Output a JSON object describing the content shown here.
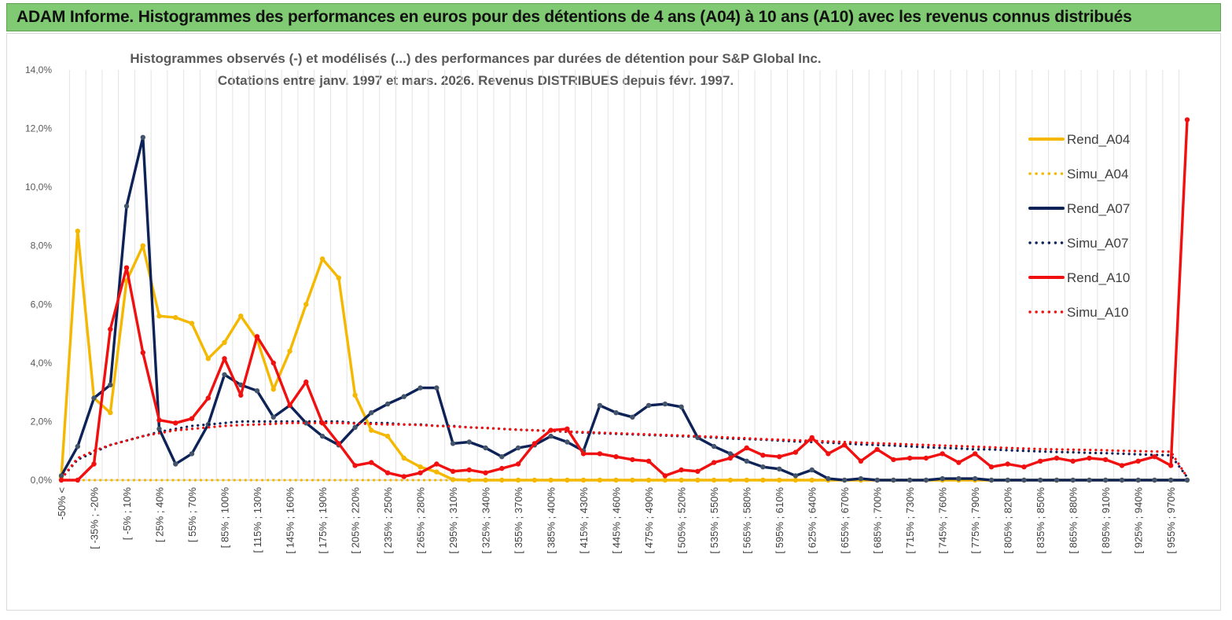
{
  "banner": {
    "title": "ADAM Informe. Histogrammes des performances en euros pour des détentions de 4 ans (A04) à 10 ans (A10) avec les revenus connus distribués"
  },
  "chart_data": {
    "type": "line",
    "title": "Histogrammes observés (-) et modélisés (...) des performances par durées de détention pour S&P Global Inc.",
    "subtitle": "Cotations entre janv. 1997 et mars. 2026. Revenus DISTRIBUES depuis févr. 1997.",
    "xlabel": "",
    "ylabel": "",
    "ylim": [
      0,
      14
    ],
    "y_ticks": [
      "0,0%",
      "2,0%",
      "4,0%",
      "6,0%",
      "8,0%",
      "10,0%",
      "12,0%",
      "14,0%"
    ],
    "grid": "vertical",
    "legend_position": "right",
    "x_labels": [
      "-50% <",
      "[ -35% ; -20%",
      "[ -5% ; 10%",
      "[ 25% ; 40%",
      "[ 55% ; 70%",
      "[ 85% ; 100%",
      "[ 115% ; 130%",
      "[ 145% ; 160%",
      "[ 175% ; 190%",
      "[ 205% ; 220%",
      "[ 235% ; 250%",
      "[ 265% ; 280%",
      "[ 295% ; 310%",
      "[ 325% ; 340%",
      "[ 355% ; 370%",
      "[ 385% ; 400%",
      "[ 415% ; 430%",
      "[ 445% ; 460%",
      "[ 475% ; 490%",
      "[ 505% ; 520%",
      "[ 535% ; 550%",
      "[ 565% ; 580%",
      "[ 595% ; 610%",
      "[ 625% ; 640%",
      "[ 655% ; 670%",
      "[ 685% ; 700%",
      "[ 715% ; 730%",
      "[ 745% ; 760%",
      "[ 775% ; 790%",
      "[ 805% ; 820%",
      "[ 835% ; 850%",
      "[ 865% ; 880%",
      "[ 895% ; 910%",
      "[ 925% ; 940%",
      "[ 955% ; 970%"
    ],
    "series": [
      {
        "name": "Rend_A04",
        "color": "#f5b800",
        "style": "solid",
        "markers": true,
        "values": [
          0.1,
          8.5,
          2.8,
          2.3,
          6.8,
          8.0,
          5.6,
          5.55,
          5.35,
          4.15,
          4.7,
          5.6,
          4.8,
          3.1,
          4.4,
          6.0,
          7.55,
          6.9,
          2.9,
          1.7,
          1.5,
          0.75,
          0.45,
          0.28,
          0.02,
          0.0,
          0.0,
          0.0,
          0.0,
          0.0,
          0.0,
          0.0,
          0.0,
          0.0,
          0.0,
          0.0,
          0.0,
          0.0,
          0.0,
          0.0,
          0.0,
          0.0,
          0.0,
          0.0,
          0.0,
          0.0,
          0.0,
          0.0,
          0.0,
          0.0,
          0.0,
          0.0,
          0.0,
          0.0,
          0.0,
          0.0,
          0.0,
          0.0,
          0.0,
          0.0,
          0.0,
          0.0,
          0.0,
          0.0,
          0.0,
          0.0,
          0.0,
          0.0,
          0.0,
          0.0
        ]
      },
      {
        "name": "Simu_A04",
        "color": "#f5b800",
        "style": "dotted",
        "markers": false,
        "values": [
          0.0,
          0.0,
          0.0,
          0.0,
          0.0,
          0.0,
          0.0,
          0.0,
          0.0,
          0.0,
          0.0,
          0.0,
          0.0,
          0.0,
          0.0,
          0.0,
          0.0,
          0.0,
          0.0,
          0.0,
          0.0,
          0.0,
          0.0,
          0.0,
          0.0,
          0.0,
          0.0,
          0.0,
          0.0,
          0.0,
          0.0,
          0.0,
          0.0,
          0.0,
          0.0,
          0.0,
          0.0,
          0.0,
          0.0,
          0.0,
          0.0,
          0.0,
          0.0,
          0.0,
          0.0,
          0.0,
          0.0,
          0.0,
          0.0,
          0.0,
          0.0,
          0.0,
          0.0,
          0.0,
          0.0,
          0.0,
          0.0,
          0.0,
          0.0,
          0.0,
          0.0,
          0.0,
          0.0,
          0.0,
          0.0,
          0.0,
          0.0,
          0.0,
          0.0,
          0.0
        ]
      },
      {
        "name": "Rend_A07",
        "color": "#0d2257",
        "style": "solid",
        "markers": true,
        "values": [
          0.15,
          1.15,
          2.8,
          3.25,
          9.35,
          11.7,
          1.75,
          0.55,
          0.9,
          1.9,
          3.6,
          3.25,
          3.05,
          2.15,
          2.55,
          1.95,
          1.5,
          1.2,
          1.8,
          2.3,
          2.6,
          2.85,
          3.15,
          3.15,
          1.25,
          1.3,
          1.1,
          0.8,
          1.1,
          1.2,
          1.5,
          1.3,
          1.0,
          2.55,
          2.3,
          2.15,
          2.55,
          2.6,
          2.5,
          1.45,
          1.15,
          0.9,
          0.65,
          0.45,
          0.38,
          0.15,
          0.35,
          0.05,
          0.0,
          0.05,
          0.0,
          0.0,
          0.0,
          0.0,
          0.05,
          0.05,
          0.05,
          0.0,
          0.0,
          0.0,
          0.0,
          0.0,
          0.0,
          0.0,
          0.0,
          0.0,
          0.0,
          0.0,
          0.0,
          0.0
        ]
      },
      {
        "name": "Simu_A07",
        "color": "#0d2257",
        "style": "dotted",
        "markers": false,
        "values": [
          0.05,
          0.7,
          0.95,
          1.2,
          1.35,
          1.5,
          1.65,
          1.75,
          1.85,
          1.9,
          1.95,
          2.0,
          2.0,
          2.0,
          2.0,
          2.0,
          2.0,
          2.0,
          1.95,
          1.95,
          1.95,
          1.9,
          1.9,
          1.85,
          1.85,
          1.8,
          1.78,
          1.75,
          1.72,
          1.7,
          1.68,
          1.65,
          1.62,
          1.6,
          1.58,
          1.56,
          1.54,
          1.52,
          1.5,
          1.48,
          1.45,
          1.42,
          1.4,
          1.38,
          1.35,
          1.32,
          1.3,
          1.28,
          1.25,
          1.22,
          1.2,
          1.18,
          1.15,
          1.12,
          1.1,
          1.08,
          1.05,
          1.05,
          1.02,
          1.0,
          0.98,
          0.96,
          0.95,
          0.93,
          0.92,
          0.9,
          0.88,
          0.86,
          0.85,
          0.1
        ]
      },
      {
        "name": "Rend_A10",
        "color": "#f01010",
        "style": "solid",
        "markers": true,
        "values": [
          0.0,
          0.0,
          0.55,
          5.15,
          7.25,
          4.35,
          2.05,
          1.95,
          2.1,
          2.8,
          4.15,
          2.9,
          4.9,
          4.0,
          2.55,
          3.35,
          1.95,
          1.25,
          0.5,
          0.6,
          0.25,
          0.12,
          0.25,
          0.55,
          0.3,
          0.35,
          0.25,
          0.4,
          0.55,
          1.25,
          1.7,
          1.75,
          0.9,
          0.9,
          0.8,
          0.7,
          0.65,
          0.15,
          0.35,
          0.3,
          0.6,
          0.75,
          1.1,
          0.85,
          0.8,
          0.95,
          1.45,
          0.9,
          1.2,
          0.65,
          1.05,
          0.7,
          0.75,
          0.75,
          0.9,
          0.6,
          0.9,
          0.45,
          0.55,
          0.45,
          0.65,
          0.75,
          0.65,
          0.75,
          0.7,
          0.5,
          0.65,
          0.8,
          0.5,
          12.3
        ]
      },
      {
        "name": "Simu_A10",
        "color": "#f01010",
        "style": "dotted",
        "markers": false,
        "values": [
          0.05,
          0.75,
          1.0,
          1.2,
          1.35,
          1.5,
          1.6,
          1.7,
          1.75,
          1.8,
          1.85,
          1.88,
          1.9,
          1.92,
          1.95,
          1.95,
          1.95,
          1.95,
          1.93,
          1.92,
          1.9,
          1.9,
          1.88,
          1.85,
          1.83,
          1.8,
          1.78,
          1.75,
          1.72,
          1.7,
          1.68,
          1.66,
          1.64,
          1.62,
          1.6,
          1.58,
          1.56,
          1.54,
          1.52,
          1.5,
          1.48,
          1.45,
          1.43,
          1.4,
          1.38,
          1.36,
          1.34,
          1.32,
          1.3,
          1.28,
          1.26,
          1.24,
          1.22,
          1.2,
          1.18,
          1.16,
          1.14,
          1.12,
          1.1,
          1.08,
          1.06,
          1.05,
          1.04,
          1.03,
          1.02,
          1.0,
          0.99,
          0.98,
          0.97,
          0.1
        ]
      }
    ]
  }
}
